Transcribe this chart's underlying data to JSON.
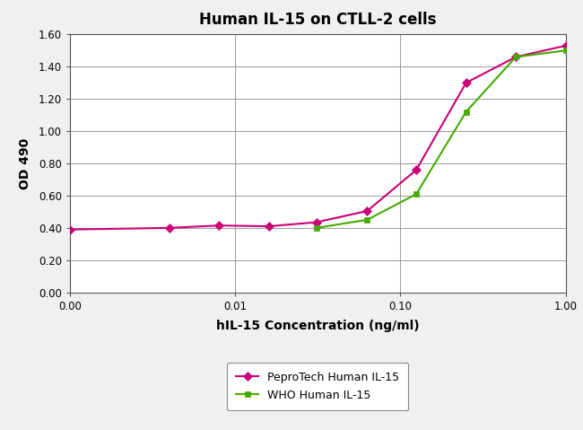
{
  "title": "Human IL-15 on CTLL-2 cells",
  "xlabel": "hIL-15 Concentration (ng/ml)",
  "ylabel": "OD 490",
  "peprotech_x": [
    0.001,
    0.004,
    0.008,
    0.016,
    0.031,
    0.063,
    0.125,
    0.25,
    0.5,
    1.0
  ],
  "peprotech_y": [
    0.39,
    0.4,
    0.415,
    0.41,
    0.435,
    0.505,
    0.76,
    1.3,
    1.46,
    1.53
  ],
  "who_x": [
    0.031,
    0.063,
    0.125,
    0.25,
    0.5,
    1.0
  ],
  "who_y": [
    0.4,
    0.45,
    0.61,
    1.12,
    1.46,
    1.5
  ],
  "peprotech_color": "#CC0077",
  "who_color": "#44AA00",
  "peprotech_label": "PeproTech Human IL-15",
  "who_label": "WHO Human IL-15",
  "ylim": [
    0.0,
    1.6
  ],
  "yticks": [
    0.0,
    0.2,
    0.4,
    0.6,
    0.8,
    1.0,
    1.2,
    1.4,
    1.6
  ],
  "background_color": "#f0f0f0",
  "plot_bg_color": "#ffffff",
  "grid_color": "#999999",
  "xtick_positions_log": [
    0.001,
    0.01,
    0.1,
    1.0
  ],
  "xtick_labels": [
    "0.00",
    "0.01",
    "0.10",
    "1.00"
  ]
}
